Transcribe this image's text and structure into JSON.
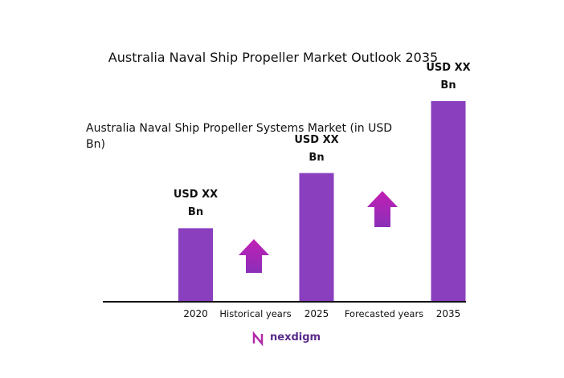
{
  "chart_data": {
    "type": "bar",
    "title": "Australia Naval Ship Propeller Market Outlook 2035",
    "subtitle": "Australia Naval Ship Propeller Systems Market (in USD Bn)",
    "categories": [
      "2020",
      "2025",
      "2035"
    ],
    "values": [
      0.91,
      1.6,
      2.5
    ],
    "value_labels": [
      "USD XX Bn",
      "USD XX Bn",
      "USD XX Bn"
    ],
    "color": "#8a3fbf",
    "ylim": [
      0,
      2.5
    ],
    "annotations": [
      "Historical years",
      "Forecasted years"
    ],
    "logo": "nexdigm"
  }
}
